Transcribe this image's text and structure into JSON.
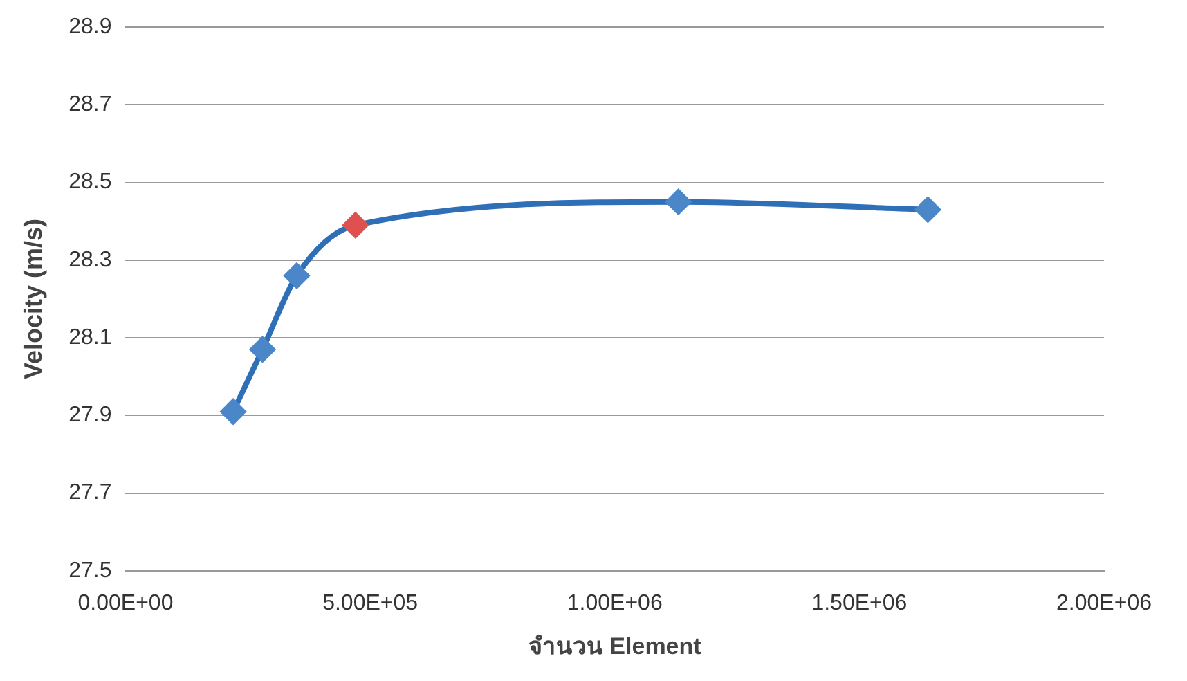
{
  "chart_data": {
    "type": "line",
    "xlabel": "จำนวน Element",
    "ylabel": "Velocity (m/s)",
    "x": [
      220000,
      280000,
      350000,
      470000,
      1130000,
      1640000
    ],
    "series": [
      {
        "color": "#2f6fb8",
        "colors": [
          "#4a86c8",
          "#4a86c8",
          "#4a86c8",
          "#e0504f",
          "#4a86c8",
          "#4a86c8"
        ],
        "values": [
          27.91,
          28.07,
          28.26,
          28.39,
          28.45,
          28.43
        ]
      }
    ],
    "xlim": [
      0,
      2000000
    ],
    "xticks": [
      {
        "value": 0,
        "label": "0.00E+00"
      },
      {
        "value": 500000,
        "label": "5.00E+05"
      },
      {
        "value": 1000000,
        "label": "1.00E+06"
      },
      {
        "value": 1500000,
        "label": "1.50E+06"
      },
      {
        "value": 2000000,
        "label": "2.00E+06"
      }
    ],
    "ylim": [
      27.5,
      28.9
    ],
    "yticks": [
      27.5,
      27.7,
      27.9,
      28.1,
      28.3,
      28.5,
      28.7,
      28.9
    ],
    "grid": "y",
    "marker": "diamond",
    "line_style": "solid"
  }
}
